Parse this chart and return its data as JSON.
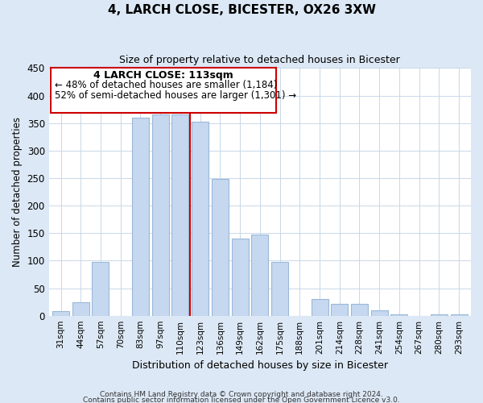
{
  "title": "4, LARCH CLOSE, BICESTER, OX26 3XW",
  "subtitle": "Size of property relative to detached houses in Bicester",
  "xlabel": "Distribution of detached houses by size in Bicester",
  "ylabel": "Number of detached properties",
  "bar_labels": [
    "31sqm",
    "44sqm",
    "57sqm",
    "70sqm",
    "83sqm",
    "97sqm",
    "110sqm",
    "123sqm",
    "136sqm",
    "149sqm",
    "162sqm",
    "175sqm",
    "188sqm",
    "201sqm",
    "214sqm",
    "228sqm",
    "241sqm",
    "254sqm",
    "267sqm",
    "280sqm",
    "293sqm"
  ],
  "bar_values": [
    8,
    25,
    98,
    0,
    360,
    365,
    365,
    352,
    248,
    140,
    148,
    98,
    0,
    30,
    22,
    22,
    10,
    2,
    0,
    3,
    2
  ],
  "bar_color": "#c5d8f0",
  "bar_edge_color": "#9ab8d8",
  "vline_x": 6.5,
  "vline_color": "#cc0000",
  "annotation_title": "4 LARCH CLOSE: 113sqm",
  "annotation_line1": "← 48% of detached houses are smaller (1,184)",
  "annotation_line2": "52% of semi-detached houses are larger (1,301) →",
  "annotation_box_color": "#ffffff",
  "annotation_box_edge_color": "#cc0000",
  "ylim": [
    0,
    450
  ],
  "footnote1": "Contains HM Land Registry data © Crown copyright and database right 2024.",
  "footnote2": "Contains public sector information licensed under the Open Government Licence v3.0.",
  "bg_color": "#dce8f5",
  "plot_bg_color": "#ffffff"
}
